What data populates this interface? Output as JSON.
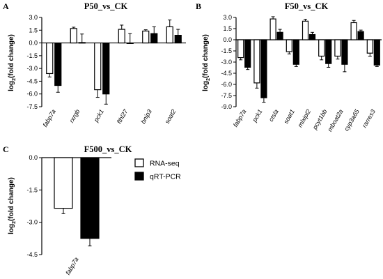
{
  "legend": [
    {
      "name": "RNA-seq",
      "fill": "#ffffff"
    },
    {
      "name": "qRT-PCR",
      "fill": "#000000"
    }
  ],
  "colors": {
    "rna_seq": "#ffffff",
    "qrt_pcr": "#000000",
    "stroke": "#000000"
  },
  "chart_data": [
    {
      "panel": "A",
      "type": "bar",
      "title": "P50_vs_CK",
      "ylabel": "log2(fold change)",
      "ylim": [
        -7.5,
        3
      ],
      "yticks": [
        -7.5,
        -6.0,
        -4.5,
        -3.0,
        -1.5,
        0.0,
        1.5,
        3.0
      ],
      "ytick_labels": [
        "-7.5",
        "-6.0",
        "-4.5",
        "-3.0",
        "-1.5",
        "0.0",
        "1.5",
        "3.0"
      ],
      "categories": [
        "fabp7a",
        "rxrgb",
        "pck1",
        "fthl27",
        "bnip3",
        "soat2"
      ],
      "series": [
        {
          "name": "RNA-seq",
          "values": [
            -3.6,
            1.7,
            -5.5,
            1.6,
            1.4,
            1.9
          ],
          "errors": [
            0.4,
            0.15,
            0.9,
            0.5,
            0.15,
            0.8
          ]
        },
        {
          "name": "qRT-PCR",
          "values": [
            -5.0,
            0.05,
            -6.0,
            0.0,
            1.1,
            0.9
          ],
          "errors": [
            0.8,
            1.0,
            1.2,
            1.1,
            0.8,
            0.7
          ]
        }
      ]
    },
    {
      "panel": "B",
      "type": "bar",
      "title": "F50_vs_CK",
      "ylabel": "log2(fold change)",
      "ylim": [
        -9,
        3
      ],
      "yticks": [
        -9.0,
        -7.5,
        -6.0,
        -4.5,
        -3.0,
        -1.5,
        0.0,
        1.5,
        3.0
      ],
      "ytick_labels": [
        "-9.0",
        "-7.5",
        "-6.0",
        "-4.5",
        "-3.0",
        "-1.5",
        "0.0",
        "1.5",
        "3.0"
      ],
      "categories": [
        "fabp7a",
        "pck1",
        "ctsla",
        "soat1",
        "mlxipl2",
        "pcyt1bb",
        "mboat2a",
        "cyp3a65",
        "rarres3"
      ],
      "series": [
        {
          "name": "RNA-seq",
          "values": [
            -2.4,
            -5.8,
            2.8,
            -1.6,
            2.5,
            -2.2,
            -2.2,
            2.3,
            -1.8
          ],
          "errors": [
            0.3,
            0.7,
            0.3,
            0.3,
            0.25,
            0.5,
            0.4,
            0.3,
            0.4
          ]
        },
        {
          "name": "qRT-PCR",
          "values": [
            -3.7,
            -7.8,
            1.0,
            -3.3,
            0.7,
            -3.2,
            -3.3,
            1.1,
            -3.4
          ],
          "errors": [
            0.3,
            0.6,
            0.4,
            0.3,
            0.3,
            0.5,
            1.0,
            0.2,
            0.2
          ]
        }
      ]
    },
    {
      "panel": "C",
      "type": "bar",
      "title": "F500_vs_CK",
      "ylabel": "log2(fold change)",
      "ylim": [
        -4.5,
        0
      ],
      "yticks": [
        -4.5,
        -3.0,
        -1.5,
        0.0
      ],
      "ytick_labels": [
        "-4.5",
        "-3.0",
        "-1.5",
        "0.0"
      ],
      "categories": [
        "fabp7a"
      ],
      "series": [
        {
          "name": "RNA-seq",
          "values": [
            -2.35
          ],
          "errors": [
            0.25
          ]
        },
        {
          "name": "qRT-PCR",
          "values": [
            -3.75
          ],
          "errors": [
            0.35
          ]
        }
      ]
    }
  ]
}
